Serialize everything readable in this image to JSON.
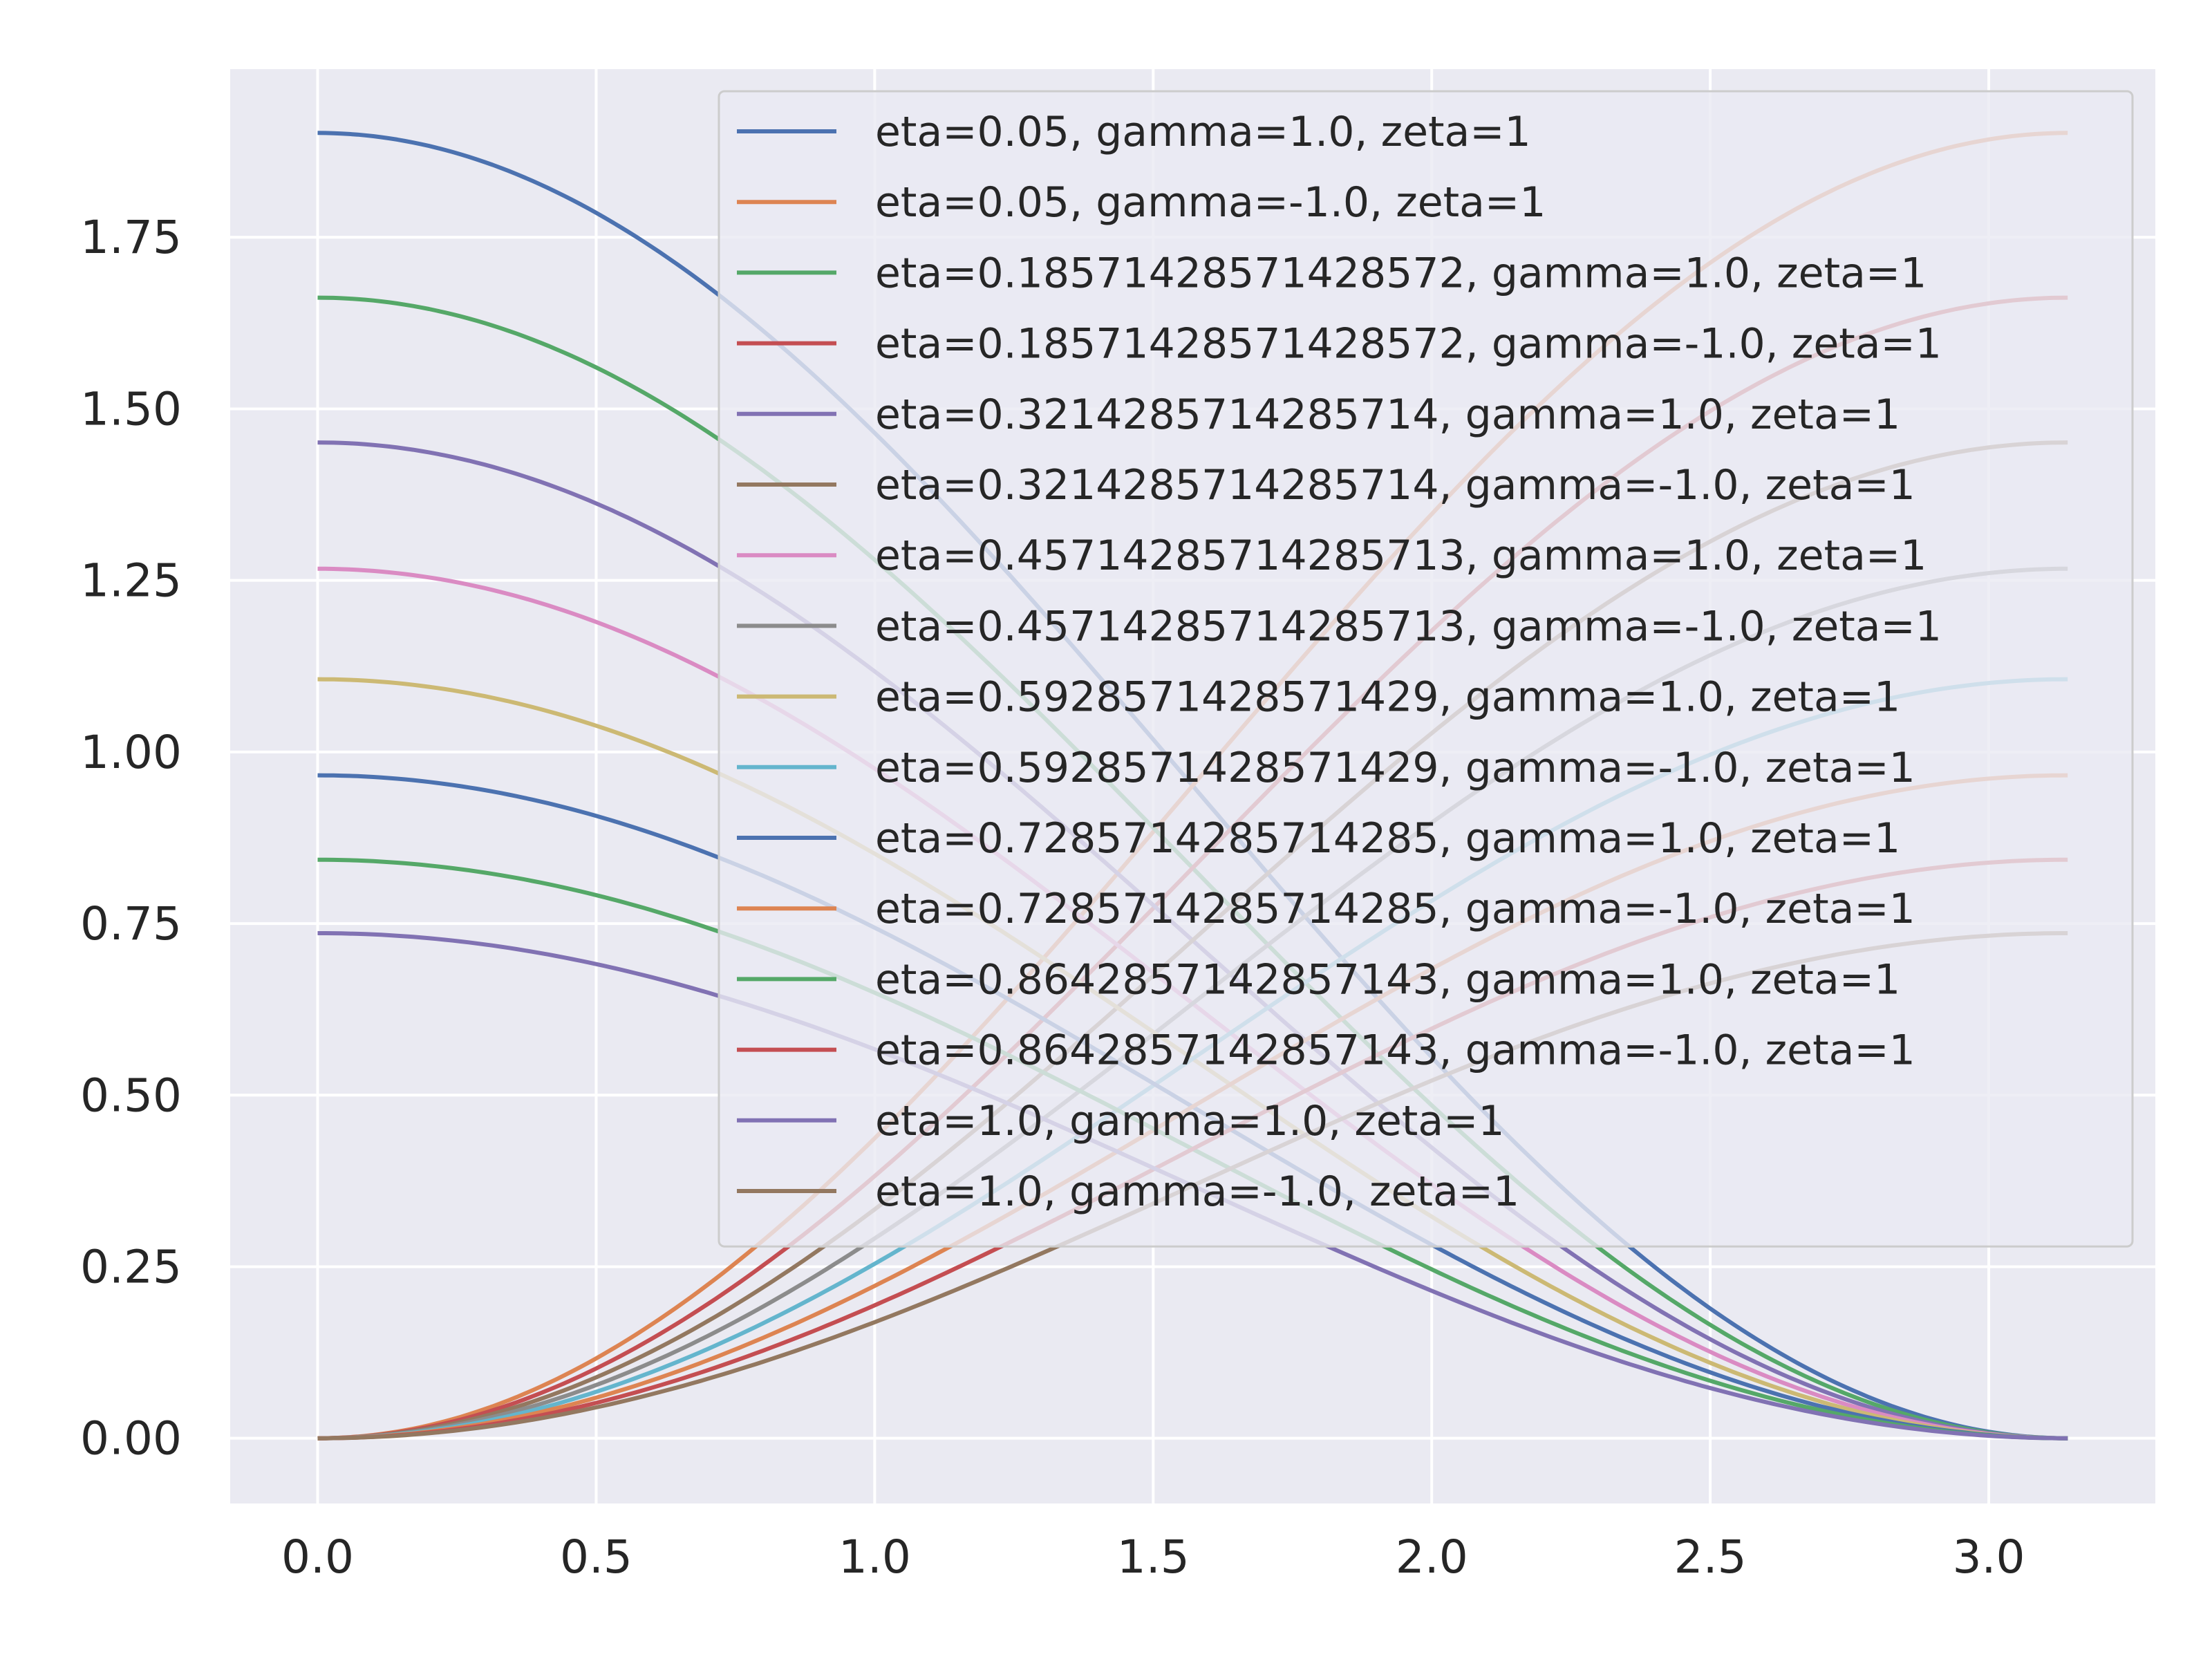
{
  "chart_data": {
    "type": "line",
    "title": "",
    "xlabel": "",
    "ylabel": "",
    "xlim": [
      -0.157,
      3.299
    ],
    "ylim": [
      -0.095,
      1.995
    ],
    "x_ticks": [
      0.0,
      0.5,
      1.0,
      1.5,
      2.0,
      2.5,
      3.0
    ],
    "x_tick_labels": [
      "0.0",
      "0.5",
      "1.0",
      "1.5",
      "2.0",
      "2.5",
      "3.0"
    ],
    "y_ticks": [
      0.0,
      0.25,
      0.5,
      0.75,
      1.0,
      1.25,
      1.5,
      1.75
    ],
    "y_tick_labels": [
      "0.00",
      "0.25",
      "0.50",
      "0.75",
      "1.00",
      "1.25",
      "1.50",
      "1.75"
    ],
    "grid": true,
    "legend_position": "top-right",
    "background": "#eaeaf2",
    "x_range": [
      0,
      3.14159
    ],
    "series": [
      {
        "name": "eta=0.05, gamma=1.0, zeta=1",
        "color": "#4c72b0",
        "peak": 1.902,
        "direction": "decreasing"
      },
      {
        "name": "eta=0.05, gamma=-1.0, zeta=1",
        "color": "#dd8452",
        "peak": 1.902,
        "direction": "increasing"
      },
      {
        "name": "eta=0.18571428571428572, gamma=1.0, zeta=1",
        "color": "#55a868",
        "peak": 1.662,
        "direction": "decreasing"
      },
      {
        "name": "eta=0.18571428571428572, gamma=-1.0, zeta=1",
        "color": "#c44e52",
        "peak": 1.662,
        "direction": "increasing"
      },
      {
        "name": "eta=0.3214285714285714, gamma=1.0, zeta=1",
        "color": "#8172b3",
        "peak": 1.451,
        "direction": "decreasing"
      },
      {
        "name": "eta=0.3214285714285714, gamma=-1.0, zeta=1",
        "color": "#937860",
        "peak": 1.451,
        "direction": "increasing"
      },
      {
        "name": "eta=0.45714285714285713, gamma=1.0, zeta=1",
        "color": "#da8bc3",
        "peak": 1.267,
        "direction": "decreasing"
      },
      {
        "name": "eta=0.45714285714285713, gamma=-1.0, zeta=1",
        "color": "#8c8c8c",
        "peak": 1.267,
        "direction": "increasing"
      },
      {
        "name": "eta=0.5928571428571429, gamma=1.0, zeta=1",
        "color": "#ccb974",
        "peak": 1.106,
        "direction": "decreasing"
      },
      {
        "name": "eta=0.5928571428571429, gamma=-1.0, zeta=1",
        "color": "#64b5cd",
        "peak": 1.106,
        "direction": "increasing"
      },
      {
        "name": "eta=0.7285714285714285, gamma=1.0, zeta=1",
        "color": "#4c72b0",
        "peak": 0.966,
        "direction": "decreasing"
      },
      {
        "name": "eta=0.7285714285714285, gamma=-1.0, zeta=1",
        "color": "#dd8452",
        "peak": 0.966,
        "direction": "increasing"
      },
      {
        "name": "eta=0.8642857142857143, gamma=1.0, zeta=1",
        "color": "#55a868",
        "peak": 0.843,
        "direction": "decreasing"
      },
      {
        "name": "eta=0.8642857142857143, gamma=-1.0, zeta=1",
        "color": "#c44e52",
        "peak": 0.843,
        "direction": "increasing"
      },
      {
        "name": "eta=1.0, gamma=1.0, zeta=1",
        "color": "#8172b3",
        "peak": 0.736,
        "direction": "decreasing"
      },
      {
        "name": "eta=1.0, gamma=-1.0, zeta=1",
        "color": "#937860",
        "peak": 0.736,
        "direction": "increasing"
      }
    ]
  }
}
